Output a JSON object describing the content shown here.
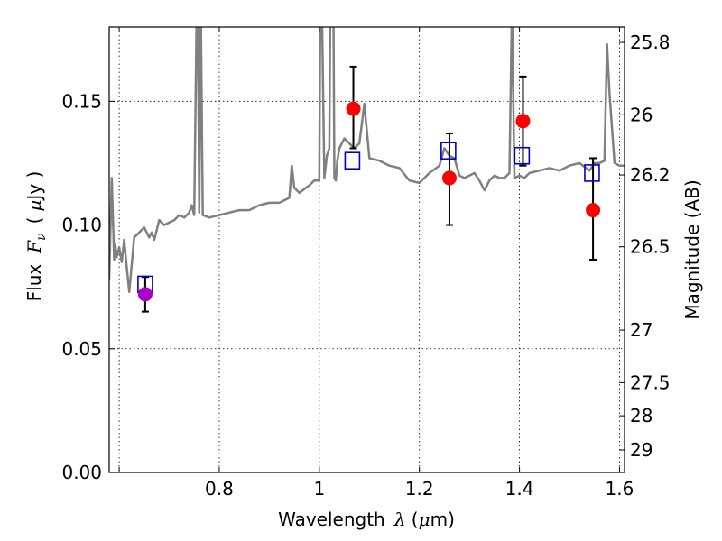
{
  "chart_data": {
    "type": "scatter",
    "title": "",
    "xlabel": "Wavelength",
    "xlabel_symbol": "λ",
    "xlabel_unit_open": " (",
    "xlabel_unit_mu": "μ",
    "xlabel_unit_close": "m)",
    "ylabel_text": "Flux",
    "ylabel_symbol": "F",
    "ylabel_subscript": "ν",
    "ylabel_unit_open": "(",
    "ylabel_unit_mu": "μ",
    "ylabel_unit_close": "Jy )",
    "y2label": "Magnitude (AB)",
    "xlim": [
      0.58,
      1.61
    ],
    "ylim": [
      0.0,
      0.18
    ],
    "grid": true,
    "grid_style": "dotted",
    "colors": {
      "spectrum": "#808080",
      "model_marker": "#0000cc",
      "observed": "#ff0000",
      "observed_first": "#aa00cc",
      "errorbar": "#000000"
    },
    "xticks": [
      {
        "value": 0.6,
        "label": ""
      },
      {
        "value": 0.8,
        "label": "0.8"
      },
      {
        "value": 1.0,
        "label": "1"
      },
      {
        "value": 1.2,
        "label": "1.2"
      },
      {
        "value": 1.4,
        "label": "1.4"
      },
      {
        "value": 1.6,
        "label": "1.6"
      }
    ],
    "yticks": [
      {
        "value": 0.0,
        "label": "0.00"
      },
      {
        "value": 0.05,
        "label": "0.05"
      },
      {
        "value": 0.1,
        "label": "0.10"
      },
      {
        "value": 0.15,
        "label": "0.15"
      }
    ],
    "y2ticks": [
      {
        "label": "25.8"
      },
      {
        "label": "26"
      },
      {
        "label": "26.2"
      },
      {
        "label": "26.5"
      },
      {
        "label": "27"
      },
      {
        "label": "27.5"
      },
      {
        "label": "28"
      },
      {
        "label": "29"
      }
    ],
    "model_points": [
      {
        "x": 0.652,
        "y": 0.076
      },
      {
        "x": 1.066,
        "y": 0.126
      },
      {
        "x": 1.258,
        "y": 0.13
      },
      {
        "x": 1.405,
        "y": 0.128
      },
      {
        "x": 1.545,
        "y": 0.121
      }
    ],
    "observed_points": [
      {
        "x": 0.652,
        "y": 0.072,
        "yerr_low": 0.065,
        "yerr_high": 0.079
      },
      {
        "x": 1.068,
        "y": 0.147,
        "yerr_low": 0.131,
        "yerr_high": 0.164
      },
      {
        "x": 1.26,
        "y": 0.119,
        "yerr_low": 0.1,
        "yerr_high": 0.137
      },
      {
        "x": 1.407,
        "y": 0.142,
        "yerr_low": 0.124,
        "yerr_high": 0.16
      },
      {
        "x": 1.547,
        "y": 0.106,
        "yerr_low": 0.086,
        "yerr_high": 0.127
      }
    ],
    "spectrum": {
      "x": [
        0.58,
        0.585,
        0.59,
        0.592,
        0.595,
        0.6,
        0.605,
        0.61,
        0.615,
        0.62,
        0.63,
        0.64,
        0.645,
        0.65,
        0.655,
        0.66,
        0.665,
        0.67,
        0.675,
        0.68,
        0.69,
        0.7,
        0.71,
        0.72,
        0.73,
        0.74,
        0.745,
        0.75,
        0.755,
        0.757,
        0.76,
        0.763,
        0.767,
        0.78,
        0.8,
        0.82,
        0.84,
        0.86,
        0.88,
        0.9,
        0.92,
        0.94,
        0.945,
        0.95,
        0.96,
        0.98,
        0.99,
        1.0,
        1.002,
        1.005,
        1.01,
        1.015,
        1.02,
        1.022,
        1.025,
        1.028,
        1.03,
        1.033,
        1.036,
        1.04,
        1.05,
        1.06,
        1.07,
        1.08,
        1.09,
        1.1,
        1.12,
        1.14,
        1.16,
        1.18,
        1.2,
        1.22,
        1.24,
        1.25,
        1.26,
        1.27,
        1.28,
        1.29,
        1.3,
        1.31,
        1.32,
        1.33,
        1.34,
        1.35,
        1.36,
        1.37,
        1.38,
        1.385,
        1.39,
        1.4,
        1.41,
        1.42,
        1.44,
        1.46,
        1.48,
        1.5,
        1.52,
        1.54,
        1.55,
        1.56,
        1.57,
        1.575,
        1.58,
        1.59,
        1.6,
        1.61
      ],
      "y": [
        0.078,
        0.119,
        0.086,
        0.092,
        0.087,
        0.091,
        0.085,
        0.094,
        0.083,
        0.073,
        0.095,
        0.097,
        0.098,
        0.099,
        0.097,
        0.095,
        0.097,
        0.094,
        0.098,
        0.102,
        0.1,
        0.101,
        0.102,
        0.104,
        0.103,
        0.105,
        0.108,
        0.104,
        0.19,
        0.19,
        0.105,
        0.19,
        0.104,
        0.103,
        0.104,
        0.105,
        0.106,
        0.106,
        0.108,
        0.109,
        0.109,
        0.111,
        0.124,
        0.115,
        0.113,
        0.116,
        0.118,
        0.118,
        0.19,
        0.19,
        0.119,
        0.128,
        0.131,
        0.19,
        0.19,
        0.19,
        0.119,
        0.118,
        0.126,
        0.131,
        0.135,
        0.133,
        0.131,
        0.133,
        0.149,
        0.127,
        0.126,
        0.124,
        0.123,
        0.118,
        0.117,
        0.121,
        0.124,
        0.131,
        0.128,
        0.127,
        0.12,
        0.119,
        0.12,
        0.121,
        0.118,
        0.114,
        0.118,
        0.12,
        0.119,
        0.119,
        0.121,
        0.19,
        0.119,
        0.12,
        0.119,
        0.121,
        0.122,
        0.123,
        0.122,
        0.124,
        0.125,
        0.122,
        0.125,
        0.125,
        0.126,
        0.173,
        0.153,
        0.125,
        0.124,
        0.124
      ]
    }
  }
}
